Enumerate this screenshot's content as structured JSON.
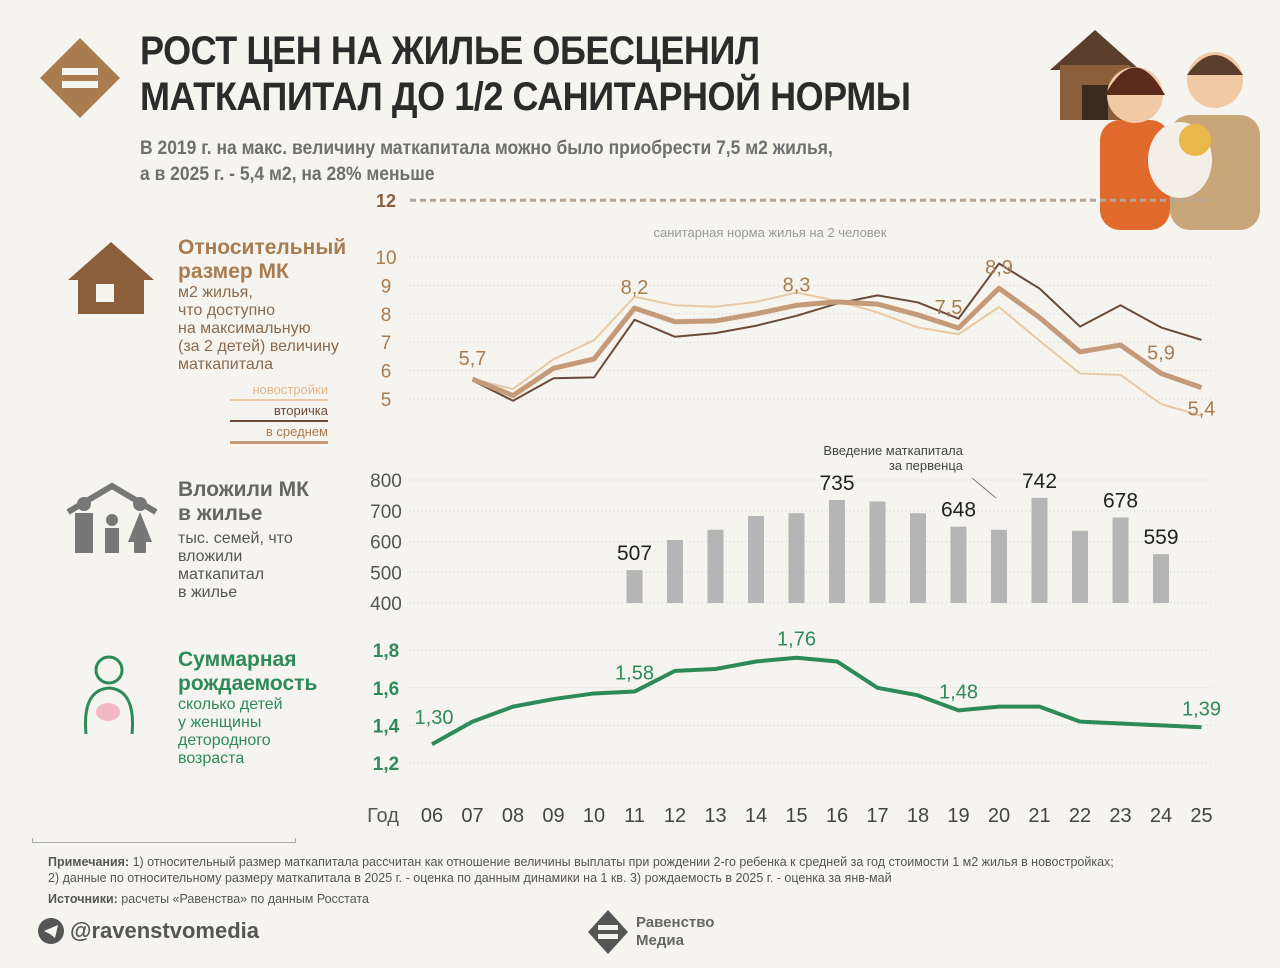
{
  "title": [
    "РОСТ ЦЕН НА ЖИЛЬЕ ОБЕСЦЕНИЛ",
    "МАТКАПИТАЛ ДО 1/2 САНИТАРНОЙ НОРМЫ"
  ],
  "subtitle": [
    "В 2019 г. на макс. величину маткапитала можно было приобрести 7,5 м2 жилья,",
    "а в 2025 г. - 5,4 м2, на 28% меньше"
  ],
  "sections": {
    "s1": {
      "heading": [
        "Относительный",
        "размер МК"
      ],
      "desc": [
        "м2 жилья,",
        "что доступно",
        "на максимальную",
        "(за 2 детей) величину",
        "маткапитала"
      ],
      "legend": [
        "новостройки",
        "вторичка",
        "в среднем"
      ]
    },
    "s2": {
      "heading": [
        "Вложили МК",
        "в жилье"
      ],
      "desc": [
        "тыс. семей, что",
        "вложили",
        "маткапитал",
        "в жилье"
      ]
    },
    "s3": {
      "heading": [
        "Суммарная",
        "рождаемость"
      ],
      "desc": [
        "сколько детей",
        "у женщины",
        "детородного",
        "возраста"
      ]
    }
  },
  "colors": {
    "new": "#e8c9a5",
    "secondary": "#6b4a3a",
    "average": "#c49a78",
    "bars": "#b5b5b5",
    "fertility": "#2e8b57",
    "brown": "#a97c50"
  },
  "chart_data": [
    {
      "type": "line",
      "title": "Относительный размер МК",
      "ylabel": "м2 жилья",
      "ylim": [
        5,
        10
      ],
      "yticks": [
        "5",
        "6",
        "7",
        "8",
        "9",
        "10"
      ],
      "reference": {
        "value": 12,
        "label": "12",
        "text": "санитарная норма жилья на 2 человек"
      },
      "x": [
        "07",
        "08",
        "09",
        "10",
        "11",
        "12",
        "13",
        "14",
        "15",
        "16",
        "17",
        "18",
        "19",
        "20",
        "21",
        "22",
        "23",
        "24",
        "25"
      ],
      "series": [
        {
          "name": "новостройки",
          "values": [
            5.7,
            5.35,
            6.4,
            7.07,
            8.6,
            8.3,
            8.25,
            8.42,
            8.75,
            8.45,
            8.05,
            7.52,
            7.28,
            8.24,
            7.05,
            5.9,
            5.85,
            4.82,
            4.41
          ]
        },
        {
          "name": "вторичка",
          "values": [
            5.65,
            4.94,
            5.73,
            5.76,
            7.79,
            7.19,
            7.32,
            7.58,
            7.93,
            8.36,
            8.65,
            8.4,
            7.83,
            9.77,
            8.89,
            7.55,
            8.3,
            7.52,
            7.08
          ]
        },
        {
          "name": "в среднем",
          "values": [
            5.7,
            5.12,
            6.08,
            6.41,
            8.2,
            7.72,
            7.75,
            8.0,
            8.3,
            8.42,
            8.34,
            7.96,
            7.5,
            8.9,
            7.87,
            6.66,
            6.9,
            5.9,
            5.4
          ]
        }
      ],
      "labels": [
        {
          "x": "07",
          "text": "5,7"
        },
        {
          "x": "11",
          "text": "8,2"
        },
        {
          "x": "15",
          "text": "8,3"
        },
        {
          "x": "19",
          "text": "7,5"
        },
        {
          "x": "20",
          "text": "8,9"
        },
        {
          "x": "24",
          "text": "5,9"
        },
        {
          "x": "25",
          "text": "5,4"
        }
      ]
    },
    {
      "type": "bar",
      "title": "Вложили МК в жилье",
      "ylim": [
        400,
        800
      ],
      "yticks": [
        "400",
        "500",
        "600",
        "700",
        "800"
      ],
      "categories": [
        "11",
        "12",
        "13",
        "14",
        "15",
        "16",
        "17",
        "18",
        "19",
        "20",
        "21",
        "22",
        "23",
        "24"
      ],
      "values": [
        507,
        605,
        638,
        683,
        692,
        735,
        730,
        692,
        648,
        638,
        742,
        635,
        678,
        559
      ],
      "labels": {
        "11": "507",
        "16": "735",
        "19": "648",
        "21": "742",
        "23": "678",
        "24": "559"
      },
      "annotation": [
        "Введение маткапитала",
        "за первенца"
      ]
    },
    {
      "type": "line",
      "title": "Суммарная рождаемость",
      "ylim": [
        1.2,
        1.8
      ],
      "yticks": [
        "1,2",
        "1,4",
        "1,6",
        "1,8"
      ],
      "x": [
        "06",
        "07",
        "08",
        "09",
        "10",
        "11",
        "12",
        "13",
        "14",
        "15",
        "16",
        "17",
        "18",
        "19",
        "20",
        "21",
        "22",
        "23",
        "24",
        "25"
      ],
      "values": [
        1.3,
        1.42,
        1.5,
        1.54,
        1.57,
        1.58,
        1.69,
        1.7,
        1.74,
        1.76,
        1.74,
        1.6,
        1.56,
        1.48,
        1.5,
        1.5,
        1.42,
        1.41,
        1.4,
        1.39
      ],
      "labels": [
        {
          "x": "06",
          "text": "1,30"
        },
        {
          "x": "11",
          "text": "1,58"
        },
        {
          "x": "15",
          "text": "1,76"
        },
        {
          "x": "19",
          "text": "1,48"
        },
        {
          "x": "25",
          "text": "1,39"
        }
      ]
    }
  ],
  "xaxis": {
    "label": "Год",
    "years": [
      "06",
      "07",
      "08",
      "09",
      "10",
      "11",
      "12",
      "13",
      "14",
      "15",
      "16",
      "17",
      "18",
      "19",
      "20",
      "21",
      "22",
      "23",
      "24",
      "25"
    ]
  },
  "footer": {
    "notes_label": "Примечания:",
    "notes": [
      "1) относительный размер маткапитала рассчитан как отношение величины выплаты при рождении 2-го ребенка к средней за год стоимости 1 м2 жилья в новостройках;",
      "2) данные по относительному размеру маткапитала в 2025 г. - оценка по данным динамики на 1 кв. 3) рождаемость в 2025 г. - оценка за янв-май"
    ],
    "sources_label": "Источники:",
    "sources": "расчеты «Равенства» по данным Росстата",
    "handle": "@ravenstvomedia",
    "brand": [
      "Равенство",
      "Медиа"
    ]
  }
}
